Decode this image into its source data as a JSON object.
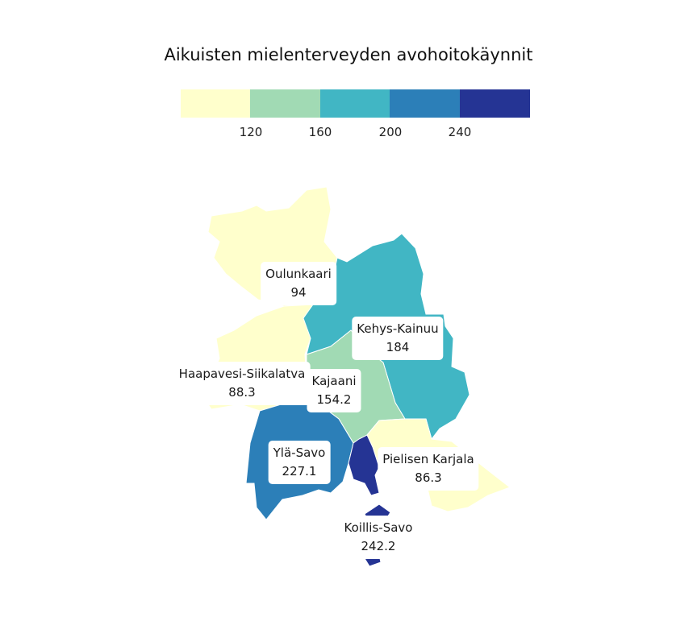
{
  "title": "Aikuisten mielenterveyden avohoitokäynnit",
  "legend": {
    "colors": [
      "#ffffcc",
      "#a1dab4",
      "#41b6c4",
      "#2c7fb8",
      "#253494"
    ],
    "breaks": [
      "120",
      "160",
      "200",
      "240"
    ]
  },
  "regions": [
    {
      "name": "Oulunkaari",
      "value": "94",
      "color": "#ffffcc"
    },
    {
      "name": "Kehys-Kainuu",
      "value": "184",
      "color": "#41b6c4"
    },
    {
      "name": "Haapavesi-Siikalatva",
      "value": "88.3",
      "color": "#ffffcc"
    },
    {
      "name": "Kajaani",
      "value": "154.2",
      "color": "#a1dab4"
    },
    {
      "name": "Ylä-Savo",
      "value": "227.1",
      "color": "#2c7fb8"
    },
    {
      "name": "Pielisen Karjala",
      "value": "86.3",
      "color": "#ffffcc"
    },
    {
      "name": "Koillis-Savo",
      "value": "242.2",
      "color": "#253494"
    }
  ]
}
